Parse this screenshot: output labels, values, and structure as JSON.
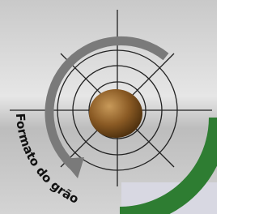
{
  "label": "Formato do grão"
}
